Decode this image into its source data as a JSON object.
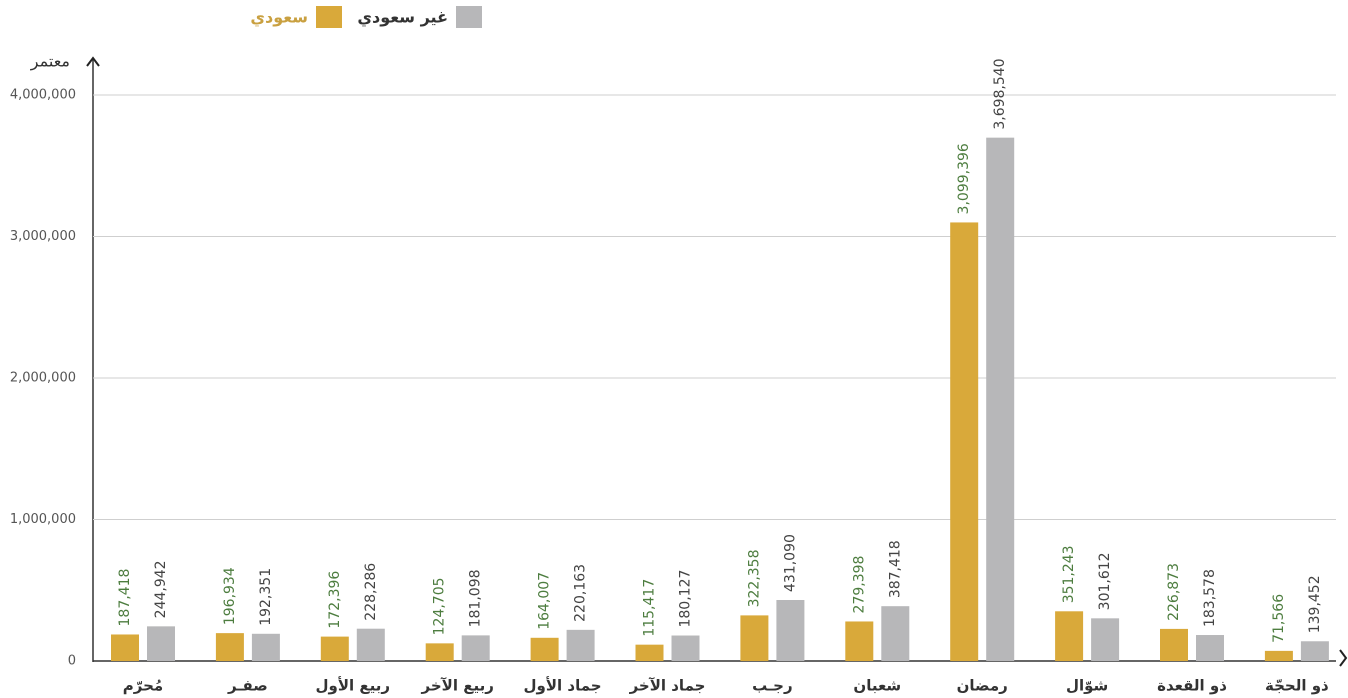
{
  "chart_data": {
    "type": "bar",
    "y_axis_label": "معتمر",
    "categories": [
      "مُحرّم",
      "صفـر",
      "ربيع الأول",
      "ربيع الآخر",
      "جماد الأول",
      "جماد الآخر",
      "رجـب",
      "شعبان",
      "رمضان",
      "شوّال",
      "ذو القعدة",
      "ذو الحجّة"
    ],
    "series": [
      {
        "name": "سعودي",
        "color": "#d9a93a",
        "label_color": "#4d7d3f",
        "values": [
          187418,
          196934,
          172396,
          124705,
          164007,
          115417,
          322358,
          279398,
          3099396,
          351243,
          226873,
          71566
        ],
        "value_labels": [
          "187,418",
          "196,934",
          "172,396",
          "124,705",
          "164,007",
          "115,417",
          "322,358",
          "279,398",
          "3,099,396",
          "351,243",
          "226,873",
          "71,566"
        ]
      },
      {
        "name": "غير سعودي",
        "color": "#b7b7b9",
        "label_color": "#444444",
        "values": [
          244942,
          192351,
          228286,
          181098,
          220163,
          180127,
          431090,
          387418,
          3698540,
          301612,
          183578,
          139452
        ],
        "value_labels": [
          "244,942",
          "192,351",
          "228,286",
          "181,098",
          "220,163",
          "180,127",
          "431,090",
          "387,418",
          "3,698,540",
          "301,612",
          "183,578",
          "139,452"
        ]
      }
    ],
    "ylim": [
      0,
      4000000
    ],
    "yticks": [
      0,
      {
        "value": 1000000,
        "label": "1,000,000"
      },
      {
        "value": 2000000,
        "label": "2,000,000"
      },
      {
        "value": 3000000,
        "label": "3,000,000"
      },
      {
        "value": 4000000,
        "label": "4,000,000"
      }
    ],
    "grid": true
  }
}
